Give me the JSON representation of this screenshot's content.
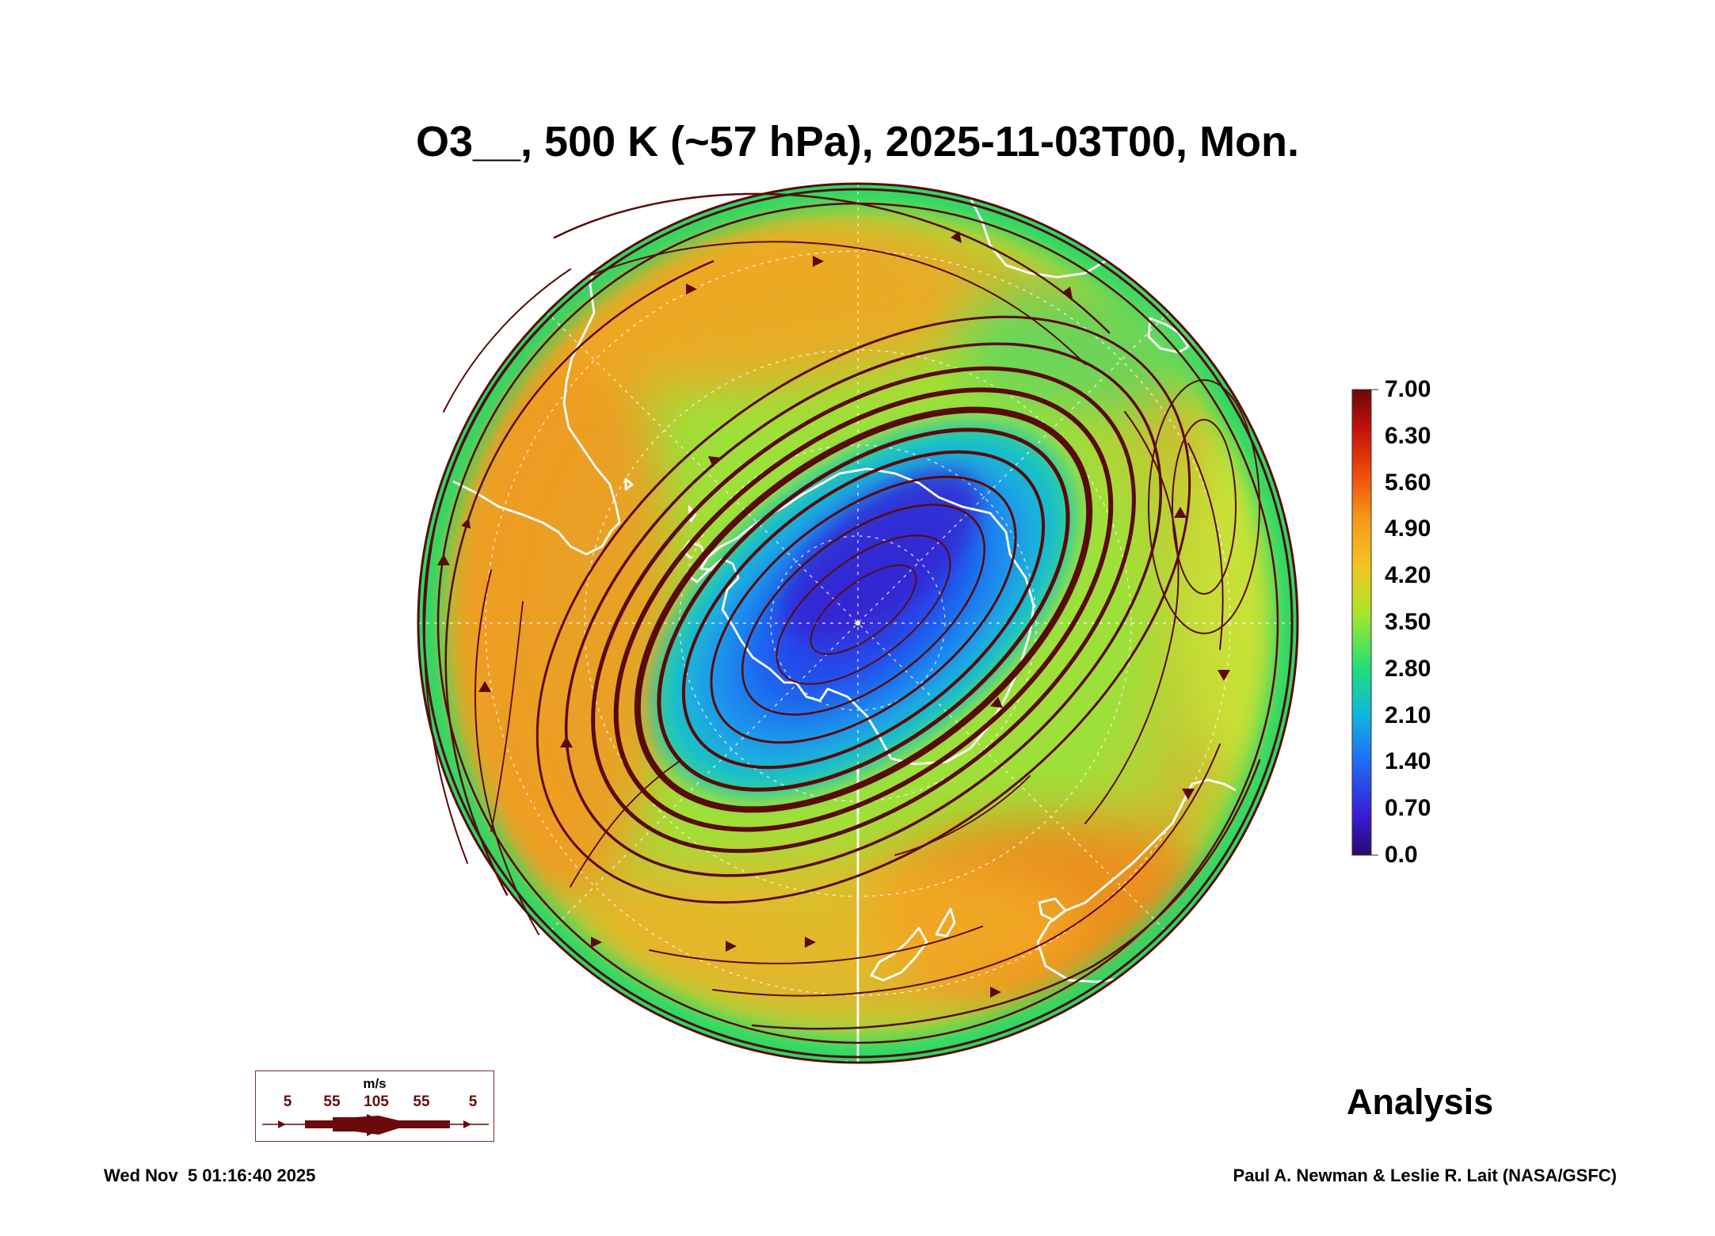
{
  "title": "O3__, 500 K (~57 hPa), 2025-11-03T00, Mon.",
  "colorbar": {
    "labels": [
      "7.00",
      "6.30",
      "5.60",
      "4.90",
      "4.20",
      "3.50",
      "2.80",
      "2.10",
      "1.40",
      "0.70",
      "0.0"
    ],
    "min": 0.0,
    "max": 7.0
  },
  "wind_legend": {
    "unit": "m/s",
    "ticks": [
      "5",
      "55",
      "105",
      "55",
      "5"
    ]
  },
  "analysis_label": "Analysis",
  "timestamp": "Wed Nov  5 01:16:40 2025",
  "credit": "Paul A. Newman & Leslie R. Lait (NASA/GSFC)",
  "colors": {
    "streamline": "#5a0a0a",
    "coastline": "#ffffff",
    "gridline": "#ffffff",
    "outline": "#5a0a0a"
  },
  "map": {
    "projection": "south polar stereographic",
    "field_min_value": 0.7,
    "field_background_value": 3.6
  }
}
